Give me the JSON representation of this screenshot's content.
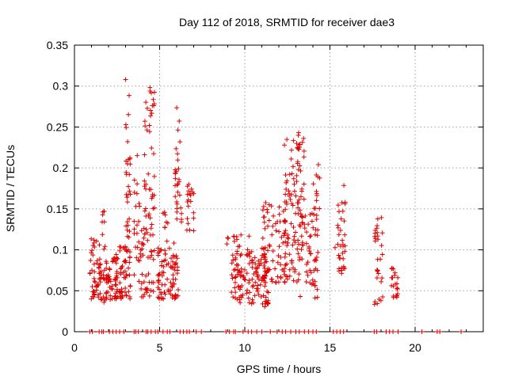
{
  "chart_data": {
    "type": "scatter",
    "title": "Day 112 of 2018, SRMTID for receiver dae3",
    "xlabel": "GPS time / hours",
    "ylabel": "SRMTID / TECUs",
    "xlim": [
      0,
      24
    ],
    "ylim": [
      0,
      0.35
    ],
    "x_ticks": [
      0,
      5,
      10,
      15,
      20
    ],
    "x_tick_labels": [
      "0",
      "5",
      "10",
      "15",
      "20"
    ],
    "y_ticks": [
      0,
      0.05,
      0.1,
      0.15,
      0.2,
      0.25,
      0.3,
      0.35
    ],
    "y_tick_labels": [
      "0",
      "0.05",
      "0.1",
      "0.15",
      "0.2",
      "0.25",
      "0.3",
      "0.35"
    ],
    "grid": true,
    "marker": "+",
    "color": "#e00000",
    "clusters": [
      {
        "x_start": 0.9,
        "x_end": 1.5,
        "y_min": 0.04,
        "y_max": 0.115,
        "n": 45
      },
      {
        "x_start": 1.5,
        "x_end": 2.5,
        "y_min": 0.035,
        "y_max": 0.09,
        "n": 60
      },
      {
        "x_start": 1.6,
        "x_end": 1.9,
        "y_min": 0.1,
        "y_max": 0.155,
        "n": 8
      },
      {
        "x_start": 2.4,
        "x_end": 3.3,
        "y_min": 0.04,
        "y_max": 0.11,
        "n": 70
      },
      {
        "x_start": 3.0,
        "x_end": 3.3,
        "y_min": 0.11,
        "y_max": 0.31,
        "n": 30
      },
      {
        "x_start": 3.5,
        "x_end": 3.9,
        "y_min": 0.06,
        "y_max": 0.22,
        "n": 25
      },
      {
        "x_start": 3.9,
        "x_end": 4.7,
        "y_min": 0.04,
        "y_max": 0.14,
        "n": 45
      },
      {
        "x_start": 4.1,
        "x_end": 4.7,
        "y_min": 0.14,
        "y_max": 0.315,
        "n": 40
      },
      {
        "x_start": 4.9,
        "x_end": 6.1,
        "y_min": 0.04,
        "y_max": 0.11,
        "n": 80
      },
      {
        "x_start": 5.1,
        "x_end": 5.5,
        "y_min": 0.11,
        "y_max": 0.15,
        "n": 8
      },
      {
        "x_start": 5.9,
        "x_end": 6.3,
        "y_min": 0.13,
        "y_max": 0.28,
        "n": 30
      },
      {
        "x_start": 6.6,
        "x_end": 7.0,
        "y_min": 0.12,
        "y_max": 0.185,
        "n": 20
      },
      {
        "x_start": 8.9,
        "x_end": 9.1,
        "y_min": 0.1,
        "y_max": 0.115,
        "n": 3
      },
      {
        "x_start": 9.2,
        "x_end": 10.3,
        "y_min": 0.035,
        "y_max": 0.12,
        "n": 75
      },
      {
        "x_start": 10.4,
        "x_end": 11.4,
        "y_min": 0.03,
        "y_max": 0.1,
        "n": 70
      },
      {
        "x_start": 11.0,
        "x_end": 12.4,
        "y_min": 0.06,
        "y_max": 0.16,
        "n": 80
      },
      {
        "x_start": 12.3,
        "x_end": 13.3,
        "y_min": 0.06,
        "y_max": 0.24,
        "n": 80
      },
      {
        "x_start": 13.1,
        "x_end": 13.5,
        "y_min": 0.13,
        "y_max": 0.245,
        "n": 25
      },
      {
        "x_start": 13.2,
        "x_end": 14.3,
        "y_min": 0.04,
        "y_max": 0.15,
        "n": 60
      },
      {
        "x_start": 14.0,
        "x_end": 14.4,
        "y_min": 0.15,
        "y_max": 0.205,
        "n": 12
      },
      {
        "x_start": 15.3,
        "x_end": 15.9,
        "y_min": 0.07,
        "y_max": 0.18,
        "n": 35
      },
      {
        "x_start": 17.6,
        "x_end": 18.1,
        "y_min": 0.03,
        "y_max": 0.145,
        "n": 30
      },
      {
        "x_start": 18.6,
        "x_end": 19.0,
        "y_min": 0.04,
        "y_max": 0.08,
        "n": 20
      }
    ],
    "zero_markers_x": [
      0.9,
      1.05,
      1.45,
      1.6,
      1.7,
      2.05,
      2.25,
      2.45,
      2.65,
      2.9,
      3.5,
      3.6,
      3.75,
      4.2,
      4.3,
      4.5,
      4.75,
      4.9,
      5.2,
      5.45,
      5.6,
      6.2,
      6.4,
      6.6,
      6.75,
      7.15,
      7.45,
      8.9,
      9.1,
      9.35,
      9.45,
      9.9,
      10.2,
      10.4,
      10.7,
      11.0,
      11.5,
      11.9,
      12.2,
      12.4,
      12.7,
      13.0,
      13.2,
      13.5,
      13.75,
      14.0,
      14.2,
      15.2,
      15.4,
      15.6,
      15.8,
      17.6,
      17.75,
      18.3,
      18.5,
      18.7,
      19.0,
      20.4,
      21.3,
      21.45,
      22.7
    ]
  }
}
